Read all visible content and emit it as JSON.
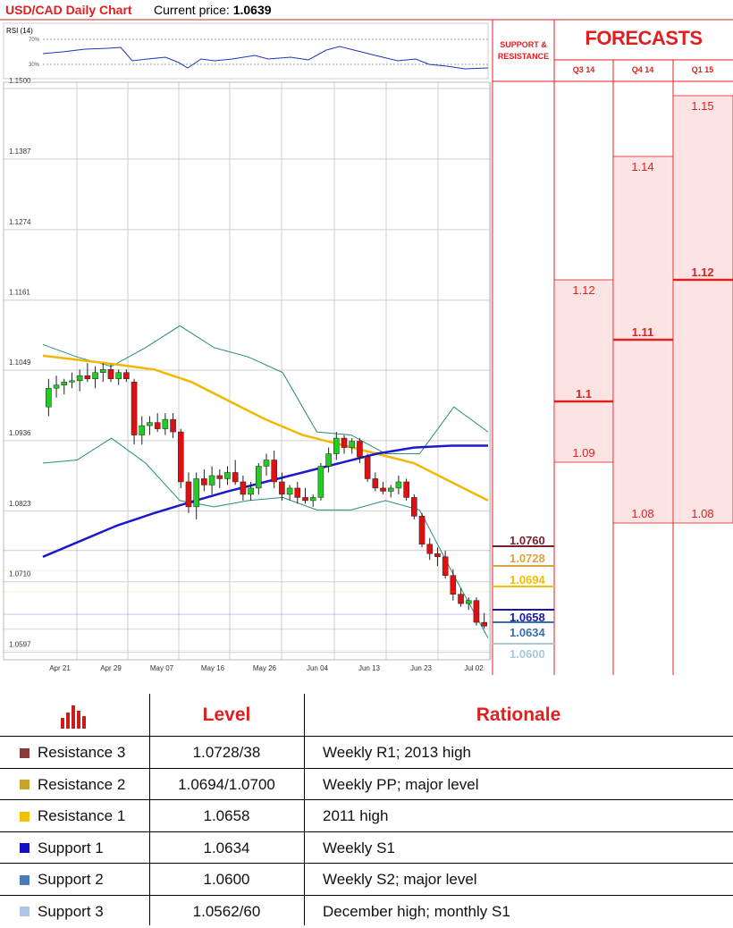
{
  "header": {
    "title": "USD/CAD Daily Chart",
    "price_label": "Current price:",
    "price_value": "1.0639"
  },
  "rsi": {
    "label": "RSI (14)",
    "ticks": [
      "70%",
      "30%"
    ]
  },
  "chart_data": {
    "type": "candlestick",
    "y_ticks": [
      "1.1500",
      "1.1387",
      "1.1274",
      "1.1161",
      "1.1049",
      "1.0936",
      "1.0823",
      "1.0710",
      "1.0597"
    ],
    "x_ticks": [
      "Apr 21",
      "Apr 29",
      "May 07",
      "May 16",
      "May 26",
      "Jun 04",
      "Jun 13",
      "Jun 23",
      "Jul 02"
    ],
    "ylim": [
      1.0585,
      1.151
    ],
    "candles": [
      [
        1.099,
        1.1035,
        1.0975,
        1.102
      ],
      [
        1.102,
        1.104,
        1.1005,
        1.1025
      ],
      [
        1.1025,
        1.1035,
        1.101,
        1.103
      ],
      [
        1.103,
        1.1045,
        1.102,
        1.1032
      ],
      [
        1.1032,
        1.105,
        1.1015,
        1.104
      ],
      [
        1.104,
        1.106,
        1.103,
        1.1035
      ],
      [
        1.1035,
        1.1055,
        1.102,
        1.1045
      ],
      [
        1.1045,
        1.106,
        1.103,
        1.105
      ],
      [
        1.105,
        1.1058,
        1.103,
        1.1035
      ],
      [
        1.1035,
        1.105,
        1.1025,
        1.1045
      ],
      [
        1.1045,
        1.105,
        1.103,
        1.1035
      ],
      [
        1.103,
        1.1035,
        1.093,
        1.0945
      ],
      [
        1.0945,
        1.0975,
        1.093,
        1.096
      ],
      [
        1.096,
        1.0975,
        1.0945,
        1.0965
      ],
      [
        1.0965,
        1.098,
        1.095,
        1.0955
      ],
      [
        1.0955,
        1.098,
        1.0945,
        1.097
      ],
      [
        1.097,
        1.098,
        1.094,
        1.095
      ],
      [
        1.095,
        1.0955,
        1.086,
        1.087
      ],
      [
        1.087,
        1.0885,
        1.082,
        1.083
      ],
      [
        1.083,
        1.0885,
        1.081,
        1.0875
      ],
      [
        1.0875,
        1.089,
        1.0855,
        1.0865
      ],
      [
        1.0865,
        1.0895,
        1.085,
        1.088
      ],
      [
        1.088,
        1.089,
        1.086,
        1.0875
      ],
      [
        1.0875,
        1.0895,
        1.0865,
        1.0885
      ],
      [
        1.0885,
        1.0905,
        1.0865,
        1.087
      ],
      [
        1.087,
        1.088,
        1.084,
        1.085
      ],
      [
        1.085,
        1.087,
        1.084,
        1.086
      ],
      [
        1.086,
        1.09,
        1.085,
        1.0895
      ],
      [
        1.0895,
        1.0915,
        1.088,
        1.0905
      ],
      [
        1.0905,
        1.092,
        1.086,
        1.087
      ],
      [
        1.087,
        1.0885,
        1.084,
        1.085
      ],
      [
        1.085,
        1.0865,
        1.084,
        1.086
      ],
      [
        1.086,
        1.087,
        1.0835,
        1.0845
      ],
      [
        1.0845,
        1.086,
        1.0835,
        1.084
      ],
      [
        1.084,
        1.085,
        1.083,
        1.0845
      ],
      [
        1.0845,
        1.09,
        1.084,
        1.0895
      ],
      [
        1.0895,
        1.0925,
        1.0885,
        1.0915
      ],
      [
        1.0915,
        1.095,
        1.0905,
        1.094
      ],
      [
        1.094,
        1.0945,
        1.0915,
        1.0925
      ],
      [
        1.0925,
        1.094,
        1.0915,
        1.0935
      ],
      [
        1.0935,
        1.094,
        1.09,
        1.091
      ],
      [
        1.091,
        1.0915,
        1.087,
        1.0875
      ],
      [
        1.0875,
        1.0885,
        1.0855,
        1.086
      ],
      [
        1.086,
        1.087,
        1.085,
        1.0855
      ],
      [
        1.0855,
        1.0865,
        1.0845,
        1.086
      ],
      [
        1.086,
        1.088,
        1.085,
        1.087
      ],
      [
        1.087,
        1.0875,
        1.084,
        1.0845
      ],
      [
        1.0845,
        1.085,
        1.081,
        1.0815
      ],
      [
        1.0815,
        1.082,
        1.0765,
        1.077
      ],
      [
        1.077,
        1.078,
        1.0745,
        1.0755
      ],
      [
        1.0755,
        1.0765,
        1.0735,
        1.075
      ],
      [
        1.075,
        1.076,
        1.0715,
        1.072
      ],
      [
        1.072,
        1.073,
        1.068,
        1.069
      ],
      [
        1.069,
        1.07,
        1.067,
        1.0675
      ],
      [
        1.0675,
        1.0685,
        1.0665,
        1.068
      ],
      [
        1.068,
        1.0685,
        1.064,
        1.0645
      ],
      [
        1.0645,
        1.066,
        1.0635,
        1.0639
      ]
    ],
    "sma_yellow": [
      1.1072,
      1.1065,
      1.1058,
      1.105,
      1.103,
      1.1,
      1.097,
      1.0945,
      1.093,
      1.0915,
      1.09,
      1.087,
      1.084
    ],
    "sma_blue": [
      1.075,
      1.0775,
      1.08,
      1.082,
      1.0838,
      1.0855,
      1.087,
      1.0885,
      1.09,
      1.0915,
      1.0925,
      1.0928,
      1.0928
    ],
    "boll_upper": [
      1.109,
      1.107,
      1.1055,
      1.1085,
      1.112,
      1.1085,
      1.107,
      1.1045,
      1.095,
      1.0945,
      1.0915,
      1.0915,
      1.099,
      1.095
    ],
    "boll_lower": [
      1.09,
      1.0905,
      1.094,
      1.09,
      1.084,
      1.083,
      1.084,
      1.0845,
      1.0825,
      1.0825,
      1.084,
      1.0825,
      1.072,
      1.062
    ],
    "sr_levels": [
      {
        "label": "1.0760",
        "value": 1.076,
        "color": "#7b1f2e"
      },
      {
        "label": "1.0728",
        "value": 1.0728,
        "color": "#d9a441"
      },
      {
        "label": "1.0694",
        "value": 1.0694,
        "color": "#f0c000"
      },
      {
        "label": "1.0658",
        "value": 1.0658,
        "color": "#1a1aa8"
      },
      {
        "label": "1.0634",
        "value": 1.0634,
        "color": "#3a6fb0"
      },
      {
        "label": "1.0600",
        "value": 1.06,
        "color": "#a9c7d8"
      }
    ]
  },
  "forecasts": {
    "sr_title": "SUPPORT & RESISTANCE",
    "title": "FORECASTS",
    "quarters": [
      {
        "label": "Q3 14",
        "high": "1.12",
        "low": "1.09",
        "mid": "1.1",
        "high_v": 1.12,
        "low_v": 1.09,
        "mid_v": 1.1
      },
      {
        "label": "Q4 14",
        "high": "1.14",
        "low": "1.08",
        "mid": "1.11",
        "high_v": 1.14,
        "low_v": 1.08,
        "mid_v": 1.11
      },
      {
        "label": "Q1 15",
        "high": "1.15",
        "low": "1.08",
        "mid": "1.12",
        "high_v": 1.15,
        "low_v": 1.08,
        "mid_v": 1.12
      }
    ]
  },
  "table": {
    "col_level": "Level",
    "col_rationale": "Rationale",
    "rows": [
      {
        "name": "Resistance 3",
        "level": "1.0728/38",
        "rationale": "Weekly R1; 2013 high",
        "color": "#8b3a3a"
      },
      {
        "name": "Resistance 2",
        "level": "1.0694/1.0700",
        "rationale": "Weekly PP; major level",
        "color": "#c9a227"
      },
      {
        "name": "Resistance 1",
        "level": "1.0658",
        "rationale": "2011 high",
        "color": "#f2c200"
      },
      {
        "name": "Support 1",
        "level": "1.0634",
        "rationale": "Weekly S1",
        "color": "#1010c8"
      },
      {
        "name": "Support 2",
        "level": "1.0600",
        "rationale": "Weekly S2; major level",
        "color": "#4a7ab8"
      },
      {
        "name": "Support 3",
        "level": "1.0562/60",
        "rationale": "December high; monthly S1",
        "color": "#aec6e4"
      }
    ]
  }
}
